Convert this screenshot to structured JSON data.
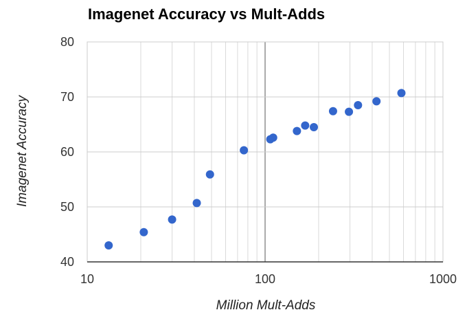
{
  "chart_data": {
    "type": "scatter",
    "title": "Imagenet Accuracy vs Mult-Adds",
    "xlabel": "Million Mult-Adds",
    "ylabel": "Imagenet Accuracy",
    "xscale": "log",
    "xlim": [
      10,
      1000
    ],
    "ylim": [
      40,
      80
    ],
    "xticks": [
      "10",
      "100",
      "1000"
    ],
    "yticks": [
      "40",
      "50",
      "60",
      "70",
      "80"
    ],
    "grid": true,
    "marker_color": "#3366cc",
    "points": [
      {
        "x": 13.2,
        "y": 43.0
      },
      {
        "x": 20.8,
        "y": 45.4
      },
      {
        "x": 30.0,
        "y": 47.7
      },
      {
        "x": 41.3,
        "y": 50.7
      },
      {
        "x": 49.0,
        "y": 55.9
      },
      {
        "x": 76.0,
        "y": 60.3
      },
      {
        "x": 107.0,
        "y": 62.3
      },
      {
        "x": 111.0,
        "y": 62.6
      },
      {
        "x": 151.0,
        "y": 63.8
      },
      {
        "x": 168.0,
        "y": 64.8
      },
      {
        "x": 188.0,
        "y": 64.5
      },
      {
        "x": 241.0,
        "y": 67.4
      },
      {
        "x": 296.0,
        "y": 67.3
      },
      {
        "x": 333.0,
        "y": 68.5
      },
      {
        "x": 423.0,
        "y": 69.2
      },
      {
        "x": 584.0,
        "y": 70.7
      }
    ]
  }
}
